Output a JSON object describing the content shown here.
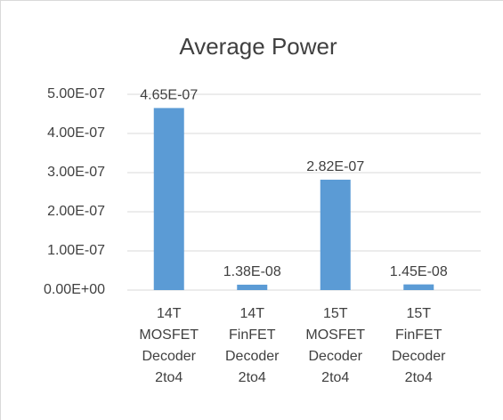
{
  "chart_data": {
    "type": "bar",
    "title": "Average Power",
    "categories": [
      "14T MOSFET Decoder 2to4",
      "14T FinFET Decoder 2to4",
      "15T MOSFET Decoder 2to4",
      "15T FinFET Decoder 2to4"
    ],
    "values": [
      4.65e-07,
      1.38e-08,
      2.82e-07,
      1.45e-08
    ],
    "value_labels": [
      "4.65E-07",
      "1.38E-08",
      "2.82E-07",
      "1.45E-08"
    ],
    "color": "#5b9bd5",
    "ylim": [
      0,
      5e-07
    ],
    "yticks": [
      {
        "value": 0,
        "label": "0.00E+00"
      },
      {
        "value": 1e-07,
        "label": "1.00E-07"
      },
      {
        "value": 2e-07,
        "label": "2.00E-07"
      },
      {
        "value": 3e-07,
        "label": "3.00E-07"
      },
      {
        "value": 4e-07,
        "label": "4.00E-07"
      },
      {
        "value": 5e-07,
        "label": "5.00E-07"
      }
    ],
    "grid": true
  }
}
